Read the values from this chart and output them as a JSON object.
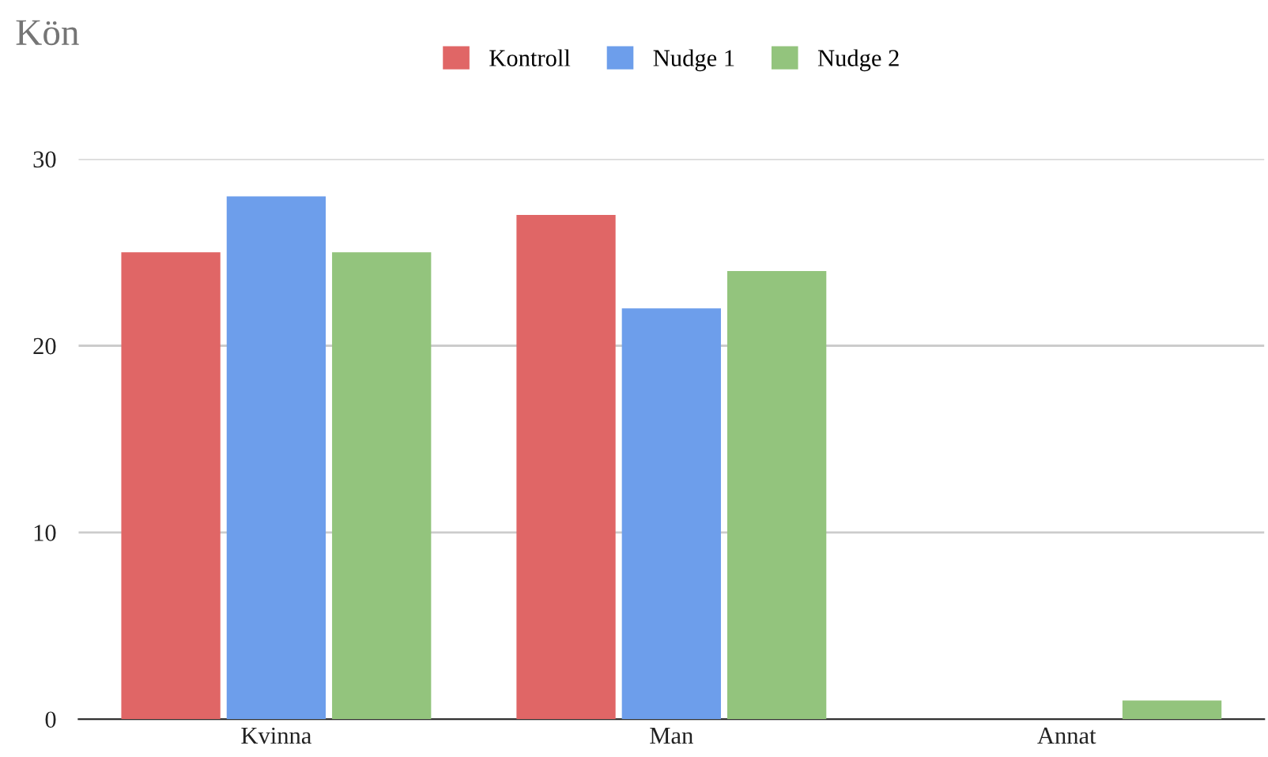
{
  "chart_data": {
    "type": "bar",
    "title": "Kön",
    "categories": [
      "Kvinna",
      "Man",
      "Annat"
    ],
    "series": [
      {
        "name": "Kontroll",
        "color": "#e06666",
        "values": [
          25,
          27,
          0
        ]
      },
      {
        "name": "Nudge 1",
        "color": "#6d9eeb",
        "values": [
          28,
          22,
          0
        ]
      },
      {
        "name": "Nudge 2",
        "color": "#93c47d",
        "values": [
          25,
          24,
          1
        ]
      }
    ],
    "ylim": [
      0,
      30
    ],
    "yticks": [
      0,
      10,
      20,
      30
    ],
    "grid": "y",
    "legend": "top"
  }
}
